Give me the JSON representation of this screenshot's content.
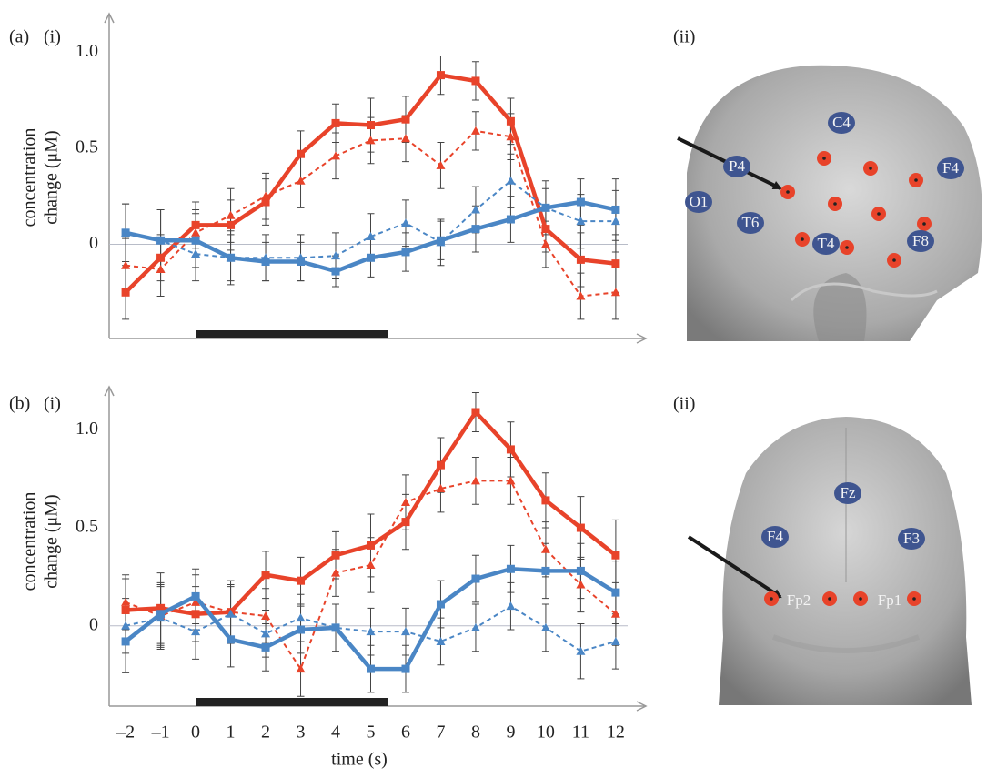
{
  "chart_data": [
    {
      "type": "line",
      "panel": "(a)",
      "subpanel": "(i)",
      "image_panel": "(ii)",
      "ylabel": [
        "concentration",
        "change (μM)"
      ],
      "x": [
        -2,
        -1,
        0,
        1,
        2,
        3,
        4,
        5,
        6,
        7,
        8,
        9,
        10,
        11,
        12
      ],
      "xlim": [
        -2.47,
        12.86
      ],
      "ylim": [
        -0.49,
        1.2
      ],
      "yticks": [
        0,
        0.5,
        {
          "value": 1,
          "label": "1.0"
        }
      ],
      "stimulus": [
        0,
        5.5
      ],
      "series": [
        {
          "color": "#e8432a",
          "style": "solid",
          "marker": "square",
          "values": [
            -0.25,
            -0.07,
            0.1,
            0.1,
            0.22,
            0.47,
            0.63,
            0.62,
            0.65,
            0.88,
            0.85,
            0.64,
            0.08,
            -0.08,
            -0.1
          ],
          "errors": [
            0.14,
            0.12,
            0.12,
            0.13,
            0.12,
            0.12,
            0.1,
            0.14,
            0.12,
            0.1,
            0.1,
            0.12,
            0.12,
            0.14,
            0.15
          ]
        },
        {
          "color": "#e8432a",
          "style": "dashed",
          "marker": "triangle",
          "values": [
            -0.11,
            -0.13,
            0.06,
            0.15,
            0.25,
            0.33,
            0.46,
            0.54,
            0.55,
            0.41,
            0.59,
            0.56,
            0.0,
            -0.27,
            -0.25
          ],
          "errors": [
            0.14,
            0.14,
            0.12,
            0.14,
            0.12,
            0.14,
            0.12,
            0.12,
            0.12,
            0.12,
            0.1,
            0.12,
            0.12,
            0.12,
            0.14
          ]
        },
        {
          "color": "#4a86c5",
          "style": "solid",
          "marker": "square",
          "values": [
            0.06,
            0.02,
            0.02,
            -0.07,
            -0.09,
            -0.09,
            -0.14,
            -0.07,
            -0.04,
            0.02,
            0.08,
            0.13,
            0.19,
            0.22,
            0.18
          ],
          "errors": [
            0.15,
            0.16,
            0.14,
            0.12,
            0.1,
            0.1,
            0.08,
            0.1,
            0.1,
            0.1,
            0.12,
            0.12,
            0.1,
            0.12,
            0.16
          ]
        },
        {
          "color": "#4a86c5",
          "style": "dashed",
          "marker": "triangle",
          "values": [
            0.06,
            0.02,
            -0.05,
            -0.07,
            -0.07,
            -0.07,
            -0.06,
            0.04,
            0.11,
            0.01,
            0.18,
            0.33,
            0.19,
            0.12,
            0.12
          ],
          "errors": [
            0.15,
            0.16,
            0.14,
            0.14,
            0.12,
            0.12,
            0.12,
            0.12,
            0.12,
            0.12,
            0.12,
            0.14,
            0.14,
            0.14,
            0.16
          ]
        }
      ],
      "electrodes": [
        "P4",
        "C4",
        "F4",
        "O1",
        "T6",
        "T4",
        "F8"
      ]
    },
    {
      "type": "line",
      "panel": "(b)",
      "subpanel": "(i)",
      "image_panel": "(ii)",
      "ylabel": [
        "concentration",
        "change (μM)"
      ],
      "xlabel": "time (s)",
      "x": [
        -2,
        -1,
        0,
        1,
        2,
        3,
        4,
        5,
        6,
        7,
        8,
        9,
        10,
        11,
        12
      ],
      "xlim": [
        -2.47,
        12.86
      ],
      "ylim": [
        -0.41,
        1.22
      ],
      "xticks": [
        {
          "value": -2,
          "label": "–2"
        },
        {
          "value": -1,
          "label": "–1"
        },
        0,
        1,
        2,
        3,
        4,
        5,
        6,
        7,
        8,
        9,
        10,
        11,
        12
      ],
      "yticks": [
        0,
        0.5,
        {
          "value": 1,
          "label": "1.0"
        }
      ],
      "stimulus": [
        0,
        5.5
      ],
      "series": [
        {
          "color": "#e8432a",
          "style": "solid",
          "marker": "square",
          "values": [
            0.08,
            0.09,
            0.06,
            0.07,
            0.26,
            0.23,
            0.36,
            0.41,
            0.53,
            0.82,
            1.09,
            0.9,
            0.64,
            0.5,
            0.36
          ],
          "errors": [
            0.16,
            0.18,
            0.14,
            0.16,
            0.12,
            0.12,
            0.12,
            0.16,
            0.14,
            0.14,
            0.1,
            0.14,
            0.14,
            0.16,
            0.18
          ]
        },
        {
          "color": "#e8432a",
          "style": "dashed",
          "marker": "triangle",
          "values": [
            0.12,
            0.05,
            0.12,
            0.07,
            0.05,
            -0.22,
            0.27,
            0.31,
            0.63,
            0.7,
            0.74,
            0.74,
            0.39,
            0.21,
            0.06
          ],
          "errors": [
            0.14,
            0.16,
            0.14,
            0.14,
            0.14,
            0.14,
            0.12,
            0.14,
            0.14,
            0.12,
            0.12,
            0.12,
            0.14,
            0.14,
            0.16
          ]
        },
        {
          "color": "#4a86c5",
          "style": "solid",
          "marker": "square",
          "values": [
            -0.08,
            0.06,
            0.15,
            -0.07,
            -0.11,
            -0.02,
            -0.01,
            -0.22,
            -0.22,
            0.11,
            0.24,
            0.29,
            0.28,
            0.28,
            0.17
          ],
          "errors": [
            0.16,
            0.16,
            0.14,
            0.14,
            0.12,
            0.12,
            0.12,
            0.12,
            0.12,
            0.12,
            0.12,
            0.12,
            0.14,
            0.14,
            0.16
          ]
        },
        {
          "color": "#4a86c5",
          "style": "dashed",
          "marker": "triangle",
          "values": [
            0.0,
            0.04,
            -0.03,
            0.06,
            -0.04,
            0.04,
            -0.01,
            -0.03,
            -0.03,
            -0.08,
            -0.01,
            0.1,
            -0.01,
            -0.13,
            -0.08
          ],
          "errors": [
            0.14,
            0.16,
            0.14,
            0.14,
            0.12,
            0.12,
            0.12,
            0.12,
            0.12,
            0.12,
            0.12,
            0.12,
            0.12,
            0.14,
            0.14
          ]
        }
      ],
      "electrodes": [
        "Fz",
        "F4",
        "F3",
        "Fp2",
        "Fp1"
      ]
    }
  ]
}
